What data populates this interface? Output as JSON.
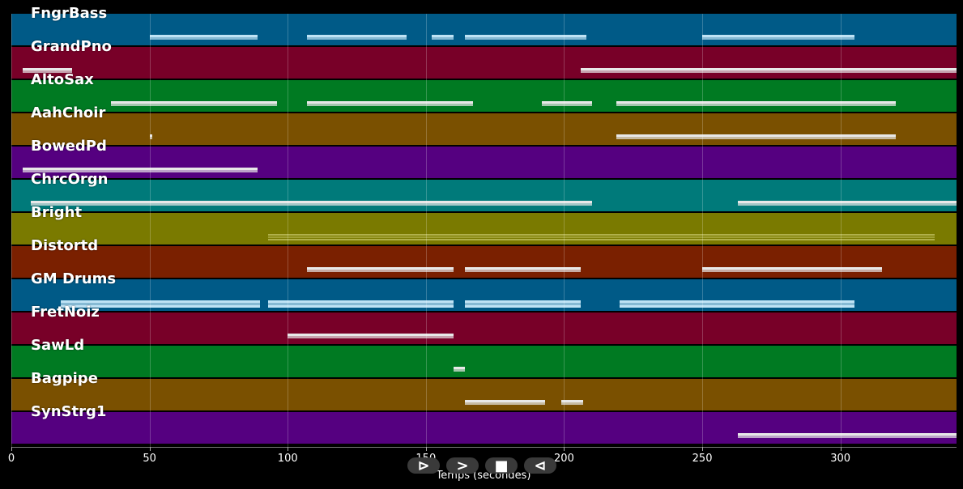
{
  "tracks": [
    {
      "name": "FngrBass",
      "color": "#005a87"
    },
    {
      "name": "GrandPno",
      "color": "#780028"
    },
    {
      "name": "AltoSax",
      "color": "#007a22"
    },
    {
      "name": "AahChoir",
      "color": "#7a5000"
    },
    {
      "name": "BowedPd",
      "color": "#550080"
    },
    {
      "name": "ChrcOrgn",
      "color": "#007a7a"
    },
    {
      "name": "Bright",
      "color": "#7a7a00"
    },
    {
      "name": "Distortd",
      "color": "#7a2000"
    },
    {
      "name": "GM Drums",
      "color": "#005a87"
    },
    {
      "name": "FretNoiz",
      "color": "#780028"
    },
    {
      "name": "SawLd",
      "color": "#007a22"
    },
    {
      "name": "Bagpipe",
      "color": "#7a5000"
    },
    {
      "name": "SynStrg1",
      "color": "#550080"
    }
  ],
  "axis": {
    "label": "Temps (secondes)",
    "ticks": [
      "0",
      "50",
      "100",
      "150",
      "200",
      "250",
      "300"
    ],
    "min": 0,
    "max": 342
  },
  "controls": [
    {
      "icon": "play-icon",
      "glyph": "⊳"
    },
    {
      "icon": "forward-icon",
      "glyph": ">"
    },
    {
      "icon": "stop-icon",
      "glyph": "■"
    },
    {
      "icon": "back-icon",
      "glyph": "⊲"
    }
  ],
  "notes": [
    {
      "track": 0,
      "segments": [
        [
          50,
          89
        ],
        [
          107,
          143
        ],
        [
          152,
          160
        ],
        [
          164,
          208
        ],
        [
          250,
          305
        ]
      ]
    },
    {
      "track": 1,
      "segments": [
        [
          4,
          22
        ],
        [
          206,
          342
        ]
      ]
    },
    {
      "track": 2,
      "segments": [
        [
          36,
          96
        ],
        [
          107,
          167
        ],
        [
          192,
          210
        ],
        [
          219,
          320
        ]
      ]
    },
    {
      "track": 3,
      "segments": [
        [
          50,
          51
        ],
        [
          219,
          320
        ]
      ]
    },
    {
      "track": 4,
      "segments": [
        [
          4,
          89
        ]
      ]
    },
    {
      "track": 5,
      "segments": [
        [
          7,
          210
        ],
        [
          263,
          342
        ]
      ]
    },
    {
      "track": 6,
      "segments": [
        [
          93,
          334
        ]
      ]
    },
    {
      "track": 7,
      "segments": [
        [
          107,
          160
        ],
        [
          164,
          206
        ],
        [
          250,
          315
        ]
      ]
    },
    {
      "track": 8,
      "segments": [
        [
          18,
          90
        ],
        [
          93,
          160
        ],
        [
          164,
          206
        ],
        [
          220,
          305
        ]
      ]
    },
    {
      "track": 9,
      "segments": [
        [
          100,
          160
        ]
      ]
    },
    {
      "track": 10,
      "segments": [
        [
          160,
          164
        ]
      ]
    },
    {
      "track": 11,
      "segments": [
        [
          164,
          193
        ],
        [
          199,
          207
        ]
      ]
    },
    {
      "track": 12,
      "segments": [
        [
          263,
          342
        ]
      ]
    }
  ]
}
